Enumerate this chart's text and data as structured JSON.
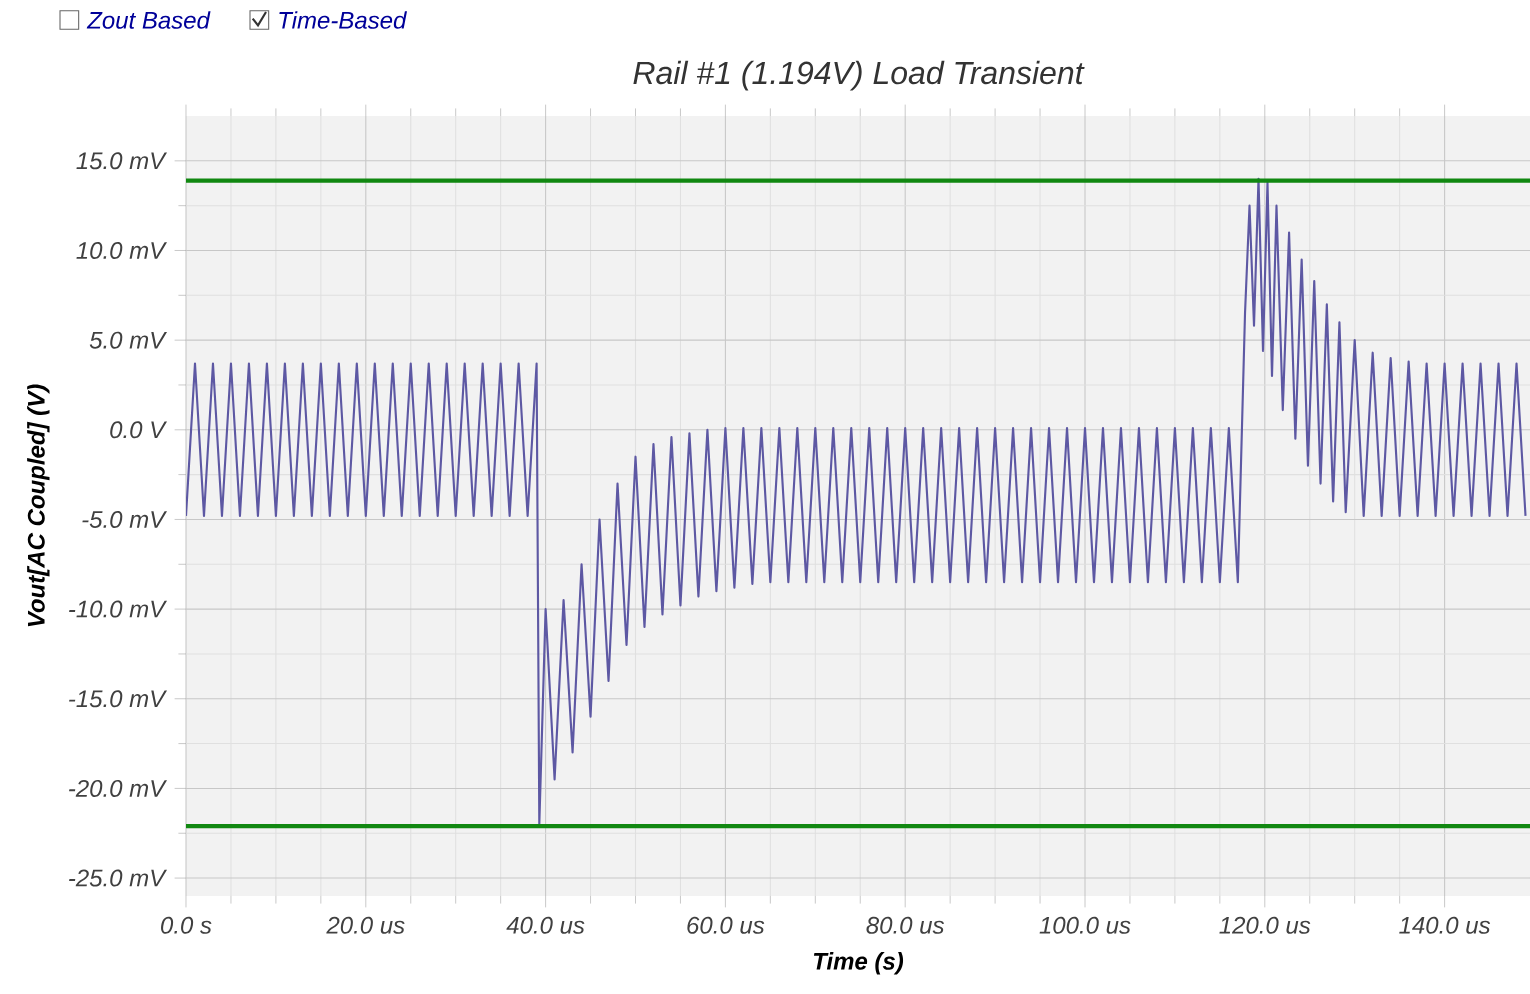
{
  "chart_data": {
    "type": "line",
    "title": "Rail #1 (1.194V) Load Transient",
    "xlabel": "Time (s)",
    "ylabel": "Vout[AC Coupled] (V)",
    "annotations": [
      "Zout Based",
      "Time-Based"
    ],
    "xlim": [
      0,
      149.5
    ],
    "ylim": [
      -26,
      17.5
    ],
    "xticks": [
      {
        "value": 0,
        "label": "0.0 s"
      },
      {
        "value": 20,
        "label": "20.0 us"
      },
      {
        "value": 40,
        "label": "40.0 us"
      },
      {
        "value": 60,
        "label": "60.0 us"
      },
      {
        "value": 80,
        "label": "80.0 us"
      },
      {
        "value": 100,
        "label": "100.0 us"
      },
      {
        "value": 120,
        "label": "120.0 us"
      },
      {
        "value": 140,
        "label": "140.0 us"
      }
    ],
    "yticks": [
      {
        "value": -25,
        "label": "-25.0 mV"
      },
      {
        "value": -20,
        "label": "-20.0 mV"
      },
      {
        "value": -15,
        "label": "-15.0 mV"
      },
      {
        "value": -10,
        "label": "-10.0 mV"
      },
      {
        "value": -5,
        "label": "-5.0 mV"
      },
      {
        "value": 0,
        "label": "0.0 V"
      },
      {
        "value": 5,
        "label": "5.0 mV"
      },
      {
        "value": 10,
        "label": "10.0 mV"
      },
      {
        "value": 15,
        "label": "15.0 mV"
      }
    ],
    "grid": true,
    "ref_lines": [
      {
        "axis": "y",
        "value": 13.9,
        "color": "#118811"
      },
      {
        "axis": "y",
        "value": -22.1,
        "color": "#118811"
      }
    ],
    "series": [
      {
        "color": "#5d58a3",
        "x": [
          0,
          1,
          2,
          3,
          4,
          5,
          6,
          7,
          8,
          9,
          10,
          11,
          12,
          13,
          14,
          15,
          16,
          17,
          18,
          19,
          20,
          21,
          22,
          23,
          24,
          25,
          26,
          27,
          28,
          29,
          30,
          31,
          32,
          33,
          34,
          35,
          36,
          37,
          38,
          39,
          39.3,
          40,
          41,
          42,
          43,
          44,
          45,
          46,
          47,
          48,
          49,
          50,
          51,
          52,
          53,
          54,
          55,
          56,
          57,
          58,
          59,
          60,
          61,
          62,
          63,
          64,
          65,
          66,
          67,
          68,
          69,
          70,
          71,
          72,
          73,
          74,
          75,
          76,
          77,
          78,
          79,
          80,
          81,
          82,
          83,
          84,
          85,
          86,
          87,
          88,
          89,
          90,
          91,
          92,
          93,
          94,
          95,
          96,
          97,
          98,
          99,
          100,
          101,
          102,
          103,
          104,
          105,
          106,
          107,
          108,
          109,
          110,
          111,
          112,
          113,
          114,
          115,
          116,
          117,
          117.8,
          118.3,
          118.8,
          119.3,
          119.8,
          120.3,
          120.8,
          121.3,
          122,
          122.7,
          123.4,
          124.1,
          124.8,
          125.5,
          126.2,
          126.9,
          127.6,
          128.3,
          129,
          130,
          131,
          132,
          133,
          134,
          135,
          136,
          137,
          138,
          139,
          140,
          141,
          142,
          143,
          144,
          145,
          146,
          147,
          148,
          149
        ],
        "values": [
          -4.8,
          3.7,
          -4.8,
          3.7,
          -4.8,
          3.7,
          -4.8,
          3.7,
          -4.8,
          3.7,
          -4.8,
          3.7,
          -4.8,
          3.7,
          -4.8,
          3.7,
          -4.8,
          3.7,
          -4.8,
          3.7,
          -4.8,
          3.7,
          -4.8,
          3.7,
          -4.8,
          3.7,
          -4.8,
          3.7,
          -4.8,
          3.7,
          -4.8,
          3.7,
          -4.8,
          3.7,
          -4.8,
          3.7,
          -4.8,
          3.7,
          -4.8,
          3.7,
          -22,
          -10,
          -19.5,
          -9.5,
          -18,
          -7.5,
          -16,
          -5,
          -14,
          -3,
          -12,
          -1.5,
          -11,
          -0.8,
          -10.3,
          -0.4,
          -9.8,
          -0.2,
          -9.3,
          0,
          -9,
          0.1,
          -8.8,
          0.1,
          -8.6,
          0.1,
          -8.5,
          0.1,
          -8.5,
          0.1,
          -8.5,
          0.1,
          -8.5,
          0.1,
          -8.5,
          0.1,
          -8.5,
          0.1,
          -8.5,
          0.1,
          -8.5,
          0.1,
          -8.5,
          0.1,
          -8.5,
          0.1,
          -8.5,
          0.1,
          -8.5,
          0.1,
          -8.5,
          0.1,
          -8.5,
          0.1,
          -8.5,
          0.1,
          -8.5,
          0.1,
          -8.5,
          0.1,
          -8.5,
          0.1,
          -8.5,
          0.1,
          -8.5,
          0.1,
          -8.5,
          0.1,
          -8.5,
          0.1,
          -8.5,
          0.1,
          -8.5,
          0.1,
          -8.5,
          0.1,
          -8.5,
          0.1,
          -8.5,
          6.5,
          12.5,
          5.8,
          14,
          4.4,
          13.8,
          3,
          12.5,
          1.1,
          11,
          -0.5,
          9.5,
          -2,
          8.3,
          -3,
          7,
          -4,
          6,
          -4.6,
          5,
          -4.8,
          4.3,
          -4.8,
          4,
          -4.8,
          3.8,
          -4.8,
          3.7,
          -4.8,
          3.7,
          -4.8,
          3.7,
          -4.8,
          3.7,
          -4.8,
          3.7,
          -4.8,
          3.7,
          -4.8
        ]
      }
    ]
  }
}
